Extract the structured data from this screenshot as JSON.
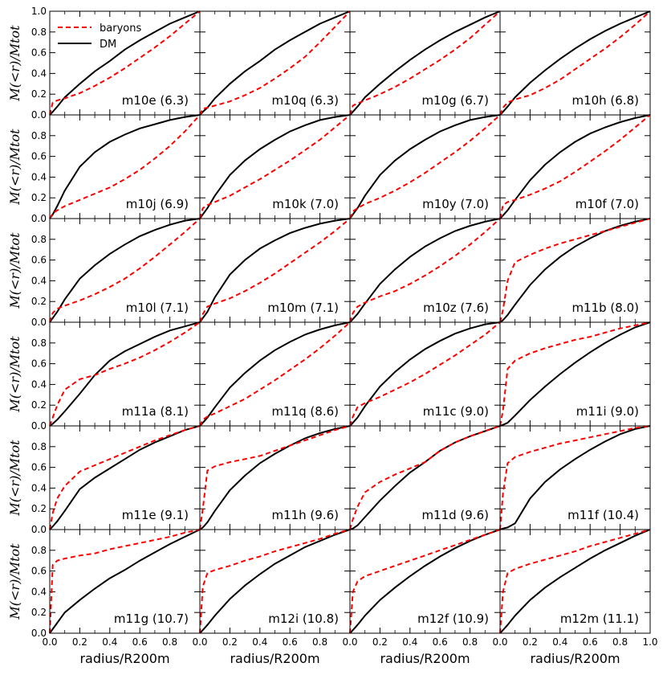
{
  "chart_data": {
    "type": "line",
    "layout": "6x4 grid of panels",
    "xlabel": "radius/R200m",
    "ylabel": "M(<r)/Mtot",
    "xlim": [
      0.0,
      1.0
    ],
    "ylim": [
      0.0,
      1.0
    ],
    "xticks": [
      "0.0",
      "0.2",
      "0.4",
      "0.6",
      "0.8",
      "1.0"
    ],
    "yticks": [
      "0.0",
      "0.2",
      "0.4",
      "0.6",
      "0.8",
      "1.0"
    ],
    "legend": {
      "placement": "top-left",
      "entries": [
        "baryons",
        "DM"
      ]
    },
    "series_styles": {
      "baryons": {
        "color": "#ff0000",
        "dash": "dashed"
      },
      "DM": {
        "color": "#000000",
        "dash": "solid"
      }
    },
    "x": [
      0.0,
      0.02,
      0.05,
      0.1,
      0.2,
      0.3,
      0.4,
      0.5,
      0.6,
      0.7,
      0.8,
      0.9,
      1.0
    ],
    "panels": [
      {
        "label": "m10e (6.3)",
        "baryons": [
          0.0,
          0.12,
          0.14,
          0.16,
          0.21,
          0.28,
          0.36,
          0.45,
          0.55,
          0.65,
          0.76,
          0.88,
          1.0
        ],
        "dm": [
          0.0,
          0.03,
          0.08,
          0.17,
          0.3,
          0.42,
          0.52,
          0.63,
          0.72,
          0.8,
          0.88,
          0.94,
          1.0
        ]
      },
      {
        "label": "m10q (6.3)",
        "baryons": [
          0.0,
          0.06,
          0.07,
          0.09,
          0.13,
          0.19,
          0.26,
          0.35,
          0.45,
          0.56,
          0.7,
          0.85,
          1.0
        ],
        "dm": [
          0.0,
          0.03,
          0.07,
          0.16,
          0.3,
          0.42,
          0.52,
          0.63,
          0.72,
          0.8,
          0.88,
          0.94,
          1.0
        ]
      },
      {
        "label": "m10g (6.7)",
        "baryons": [
          0.0,
          0.09,
          0.11,
          0.14,
          0.2,
          0.27,
          0.35,
          0.44,
          0.53,
          0.63,
          0.74,
          0.87,
          1.0
        ],
        "dm": [
          0.0,
          0.03,
          0.08,
          0.17,
          0.3,
          0.42,
          0.53,
          0.63,
          0.72,
          0.8,
          0.87,
          0.94,
          1.0
        ]
      },
      {
        "label": "m10h (6.8)",
        "baryons": [
          0.0,
          0.07,
          0.12,
          0.15,
          0.19,
          0.26,
          0.34,
          0.44,
          0.54,
          0.64,
          0.75,
          0.87,
          1.0
        ],
        "dm": [
          0.0,
          0.03,
          0.08,
          0.17,
          0.31,
          0.43,
          0.54,
          0.64,
          0.73,
          0.81,
          0.88,
          0.94,
          1.0
        ]
      },
      {
        "label": "m10j (6.9)",
        "baryons": [
          0.0,
          0.05,
          0.08,
          0.12,
          0.18,
          0.24,
          0.3,
          0.38,
          0.47,
          0.58,
          0.7,
          0.84,
          1.0
        ],
        "dm": [
          0.0,
          0.04,
          0.12,
          0.27,
          0.5,
          0.64,
          0.74,
          0.81,
          0.87,
          0.91,
          0.95,
          0.98,
          1.0
        ]
      },
      {
        "label": "m10k (7.0)",
        "baryons": [
          0.0,
          0.1,
          0.13,
          0.16,
          0.22,
          0.3,
          0.38,
          0.47,
          0.56,
          0.66,
          0.76,
          0.88,
          1.0
        ],
        "dm": [
          0.0,
          0.04,
          0.1,
          0.22,
          0.42,
          0.56,
          0.67,
          0.76,
          0.84,
          0.9,
          0.95,
          0.98,
          1.0
        ]
      },
      {
        "label": "m10y (7.0)",
        "baryons": [
          0.0,
          0.07,
          0.1,
          0.14,
          0.2,
          0.27,
          0.35,
          0.44,
          0.54,
          0.64,
          0.75,
          0.87,
          1.0
        ],
        "dm": [
          0.0,
          0.04,
          0.1,
          0.22,
          0.42,
          0.56,
          0.67,
          0.76,
          0.84,
          0.9,
          0.95,
          0.98,
          1.0
        ]
      },
      {
        "label": "m10f (7.0)",
        "baryons": [
          0.0,
          0.13,
          0.16,
          0.18,
          0.23,
          0.29,
          0.36,
          0.45,
          0.55,
          0.65,
          0.76,
          0.88,
          1.0
        ],
        "dm": [
          0.0,
          0.03,
          0.08,
          0.18,
          0.37,
          0.52,
          0.64,
          0.74,
          0.82,
          0.88,
          0.93,
          0.97,
          1.0
        ]
      },
      {
        "label": "m10l (7.1)",
        "baryons": [
          0.0,
          0.09,
          0.13,
          0.16,
          0.21,
          0.27,
          0.34,
          0.42,
          0.52,
          0.63,
          0.75,
          0.87,
          1.0
        ],
        "dm": [
          0.0,
          0.04,
          0.1,
          0.22,
          0.42,
          0.55,
          0.66,
          0.75,
          0.83,
          0.89,
          0.94,
          0.98,
          1.0
        ]
      },
      {
        "label": "m10m (7.1)",
        "baryons": [
          0.0,
          0.08,
          0.15,
          0.18,
          0.23,
          0.3,
          0.38,
          0.47,
          0.57,
          0.67,
          0.77,
          0.88,
          1.0
        ],
        "dm": [
          0.0,
          0.04,
          0.1,
          0.24,
          0.46,
          0.6,
          0.71,
          0.79,
          0.86,
          0.91,
          0.95,
          0.98,
          1.0
        ]
      },
      {
        "label": "m10z (7.6)",
        "baryons": [
          0.0,
          0.09,
          0.15,
          0.19,
          0.25,
          0.3,
          0.37,
          0.45,
          0.54,
          0.64,
          0.75,
          0.87,
          1.0
        ],
        "dm": [
          0.0,
          0.03,
          0.08,
          0.18,
          0.37,
          0.51,
          0.63,
          0.73,
          0.81,
          0.88,
          0.93,
          0.97,
          1.0
        ]
      },
      {
        "label": "m11b (8.0)",
        "baryons": [
          0.0,
          0.12,
          0.4,
          0.58,
          0.65,
          0.71,
          0.76,
          0.8,
          0.84,
          0.88,
          0.92,
          0.96,
          1.0
        ],
        "dm": [
          0.0,
          0.02,
          0.07,
          0.17,
          0.36,
          0.51,
          0.63,
          0.73,
          0.81,
          0.88,
          0.93,
          0.97,
          1.0
        ]
      },
      {
        "label": "m11a (8.1)",
        "baryons": [
          0.0,
          0.08,
          0.2,
          0.35,
          0.45,
          0.49,
          0.55,
          0.6,
          0.66,
          0.73,
          0.81,
          0.9,
          1.0
        ],
        "dm": [
          0.0,
          0.02,
          0.06,
          0.14,
          0.31,
          0.49,
          0.63,
          0.72,
          0.79,
          0.86,
          0.92,
          0.96,
          1.0
        ]
      },
      {
        "label": "m11q (8.6)",
        "baryons": [
          0.0,
          0.06,
          0.09,
          0.12,
          0.19,
          0.26,
          0.35,
          0.44,
          0.54,
          0.64,
          0.75,
          0.87,
          1.0
        ],
        "dm": [
          0.0,
          0.03,
          0.08,
          0.18,
          0.37,
          0.51,
          0.63,
          0.73,
          0.81,
          0.88,
          0.93,
          0.97,
          1.0
        ]
      },
      {
        "label": "m11c (9.0)",
        "baryons": [
          0.0,
          0.09,
          0.18,
          0.22,
          0.28,
          0.35,
          0.42,
          0.5,
          0.59,
          0.68,
          0.78,
          0.88,
          1.0
        ],
        "dm": [
          0.0,
          0.03,
          0.08,
          0.19,
          0.38,
          0.52,
          0.64,
          0.74,
          0.82,
          0.89,
          0.94,
          0.98,
          1.0
        ]
      },
      {
        "label": "m11i (9.0)",
        "baryons": [
          0.0,
          0.15,
          0.55,
          0.63,
          0.7,
          0.75,
          0.79,
          0.83,
          0.86,
          0.9,
          0.94,
          0.97,
          1.0
        ],
        "dm": [
          0.0,
          0.01,
          0.03,
          0.1,
          0.25,
          0.38,
          0.5,
          0.61,
          0.71,
          0.8,
          0.88,
          0.95,
          1.0
        ]
      },
      {
        "label": "m11e (9.1)",
        "baryons": [
          0.0,
          0.16,
          0.3,
          0.42,
          0.56,
          0.62,
          0.68,
          0.74,
          0.8,
          0.86,
          0.91,
          0.96,
          1.0
        ],
        "dm": [
          0.0,
          0.03,
          0.08,
          0.18,
          0.39,
          0.5,
          0.59,
          0.68,
          0.77,
          0.84,
          0.9,
          0.96,
          1.0
        ]
      },
      {
        "label": "m11h (9.6)",
        "baryons": [
          0.0,
          0.2,
          0.57,
          0.61,
          0.65,
          0.68,
          0.71,
          0.76,
          0.81,
          0.86,
          0.91,
          0.96,
          1.0
        ],
        "dm": [
          0.0,
          0.02,
          0.07,
          0.18,
          0.38,
          0.52,
          0.64,
          0.73,
          0.81,
          0.88,
          0.93,
          0.97,
          1.0
        ]
      },
      {
        "label": "m11d (9.6)",
        "baryons": [
          0.0,
          0.1,
          0.22,
          0.36,
          0.46,
          0.53,
          0.59,
          0.65,
          0.76,
          0.84,
          0.9,
          0.95,
          1.0
        ],
        "dm": [
          0.0,
          0.01,
          0.04,
          0.12,
          0.28,
          0.42,
          0.55,
          0.65,
          0.76,
          0.84,
          0.9,
          0.95,
          1.0
        ]
      },
      {
        "label": "m11f (10.4)",
        "baryons": [
          0.0,
          0.35,
          0.64,
          0.7,
          0.75,
          0.79,
          0.83,
          0.86,
          0.89,
          0.92,
          0.95,
          0.98,
          1.0
        ],
        "dm": [
          0.0,
          0.01,
          0.02,
          0.06,
          0.3,
          0.46,
          0.58,
          0.68,
          0.77,
          0.85,
          0.92,
          0.97,
          1.0
        ]
      },
      {
        "label": "m11g (10.7)",
        "baryons": [
          0.0,
          0.66,
          0.7,
          0.72,
          0.75,
          0.77,
          0.81,
          0.84,
          0.87,
          0.9,
          0.93,
          0.97,
          1.0
        ],
        "dm": [
          0.0,
          0.04,
          0.1,
          0.2,
          0.32,
          0.43,
          0.53,
          0.61,
          0.7,
          0.78,
          0.86,
          0.93,
          1.0
        ]
      },
      {
        "label": "m12i (10.8)",
        "baryons": [
          0.0,
          0.45,
          0.58,
          0.61,
          0.65,
          0.7,
          0.74,
          0.79,
          0.83,
          0.87,
          0.91,
          0.96,
          1.0
        ],
        "dm": [
          0.0,
          0.03,
          0.08,
          0.17,
          0.33,
          0.46,
          0.57,
          0.67,
          0.75,
          0.83,
          0.89,
          0.95,
          1.0
        ]
      },
      {
        "label": "m12f (10.9)",
        "baryons": [
          0.0,
          0.4,
          0.5,
          0.55,
          0.6,
          0.65,
          0.7,
          0.75,
          0.8,
          0.85,
          0.9,
          0.95,
          1.0
        ],
        "dm": [
          0.0,
          0.03,
          0.08,
          0.17,
          0.32,
          0.44,
          0.55,
          0.65,
          0.74,
          0.82,
          0.89,
          0.95,
          1.0
        ]
      },
      {
        "label": "m12m (11.1)",
        "baryons": [
          0.0,
          0.4,
          0.58,
          0.62,
          0.67,
          0.71,
          0.75,
          0.79,
          0.84,
          0.88,
          0.92,
          0.96,
          1.0
        ],
        "dm": [
          0.0,
          0.03,
          0.08,
          0.17,
          0.32,
          0.44,
          0.54,
          0.63,
          0.72,
          0.8,
          0.87,
          0.94,
          1.0
        ]
      }
    ]
  }
}
